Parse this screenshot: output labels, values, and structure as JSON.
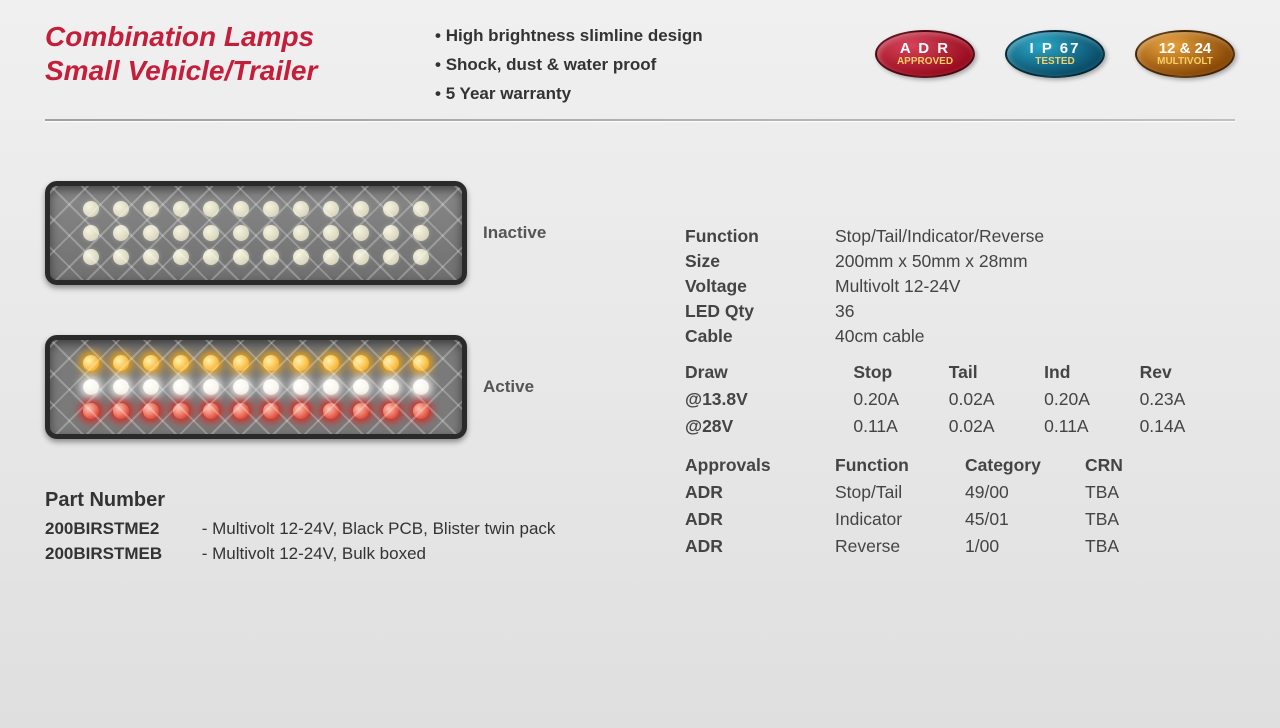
{
  "header": {
    "title_line1": "Combination Lamps",
    "title_line2": "Small Vehicle/Trailer",
    "title_color": "#c41e3a",
    "bullets": [
      "High brightness slimline design",
      "Shock, dust & water proof",
      "5 Year warranty"
    ],
    "badges": [
      {
        "line1": "A D R",
        "line2": "APPROVED",
        "bg": "#9b0e20"
      },
      {
        "line1": "I P 67",
        "line2": "TESTED",
        "bg": "#0b4f6b"
      },
      {
        "line1": "12 & 24",
        "line2": "MULTIVOLT",
        "bg": "#8b4a08"
      }
    ]
  },
  "lamps": {
    "led_count_per_row": 12,
    "led_rows": 3,
    "inactive_label": "Inactive",
    "active_label": "Active",
    "inactive_led_color": "off",
    "active_rows": [
      "amber",
      "white",
      "red"
    ],
    "led_colors_hex": {
      "off": "#cfcab0",
      "amber": "#f59c00",
      "white": "#ffffff",
      "red": "#d5230d"
    }
  },
  "part_numbers": {
    "heading": "Part Number",
    "items": [
      {
        "pn": "200BIRSTME2",
        "desc": "- Multivolt 12-24V, Black PCB, Blister twin pack"
      },
      {
        "pn": "200BIRSTMEB",
        "desc": "- Multivolt 12-24V, Bulk boxed"
      }
    ]
  },
  "specs": {
    "rows": [
      {
        "k": "Function",
        "v": "Stop/Tail/Indicator/Reverse"
      },
      {
        "k": "Size",
        "v": "200mm x 50mm x 28mm"
      },
      {
        "k": "Voltage",
        "v": "Multivolt 12-24V"
      },
      {
        "k": "LED Qty",
        "v": "36"
      },
      {
        "k": "Cable",
        "v": "40cm cable"
      }
    ]
  },
  "draw": {
    "header": [
      "Draw",
      "Stop",
      "Tail",
      "Ind",
      "Rev"
    ],
    "rows": [
      {
        "k": "@13.8V",
        "v": [
          "0.20A",
          "0.02A",
          "0.20A",
          "0.23A"
        ]
      },
      {
        "k": "@28V",
        "v": [
          "0.11A",
          "0.02A",
          "0.11A",
          "0.14A"
        ]
      }
    ]
  },
  "approvals": {
    "header": [
      "Approvals",
      "Function",
      "Category",
      "CRN"
    ],
    "rows": [
      {
        "k": "ADR",
        "v": [
          "Stop/Tail",
          "49/00",
          "TBA"
        ]
      },
      {
        "k": "ADR",
        "v": [
          "Indicator",
          "45/01",
          "TBA"
        ]
      },
      {
        "k": "ADR",
        "v": [
          "Reverse",
          "1/00",
          "TBA"
        ]
      }
    ]
  }
}
